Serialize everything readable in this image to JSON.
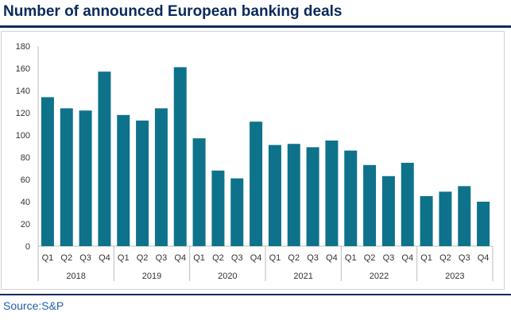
{
  "header": {
    "title": "Number of announced European banking deals"
  },
  "footer": {
    "source": "Source:S&P"
  },
  "chart_data": {
    "type": "bar",
    "title": "Number of announced European banking deals",
    "xlabel": "",
    "ylabel": "",
    "ylim": [
      0,
      180
    ],
    "yticks": [
      0,
      20,
      40,
      60,
      80,
      100,
      120,
      140,
      160,
      180
    ],
    "grid": false,
    "legend": "none",
    "color": "#0e728b",
    "years": [
      "2018",
      "2019",
      "2020",
      "2021",
      "2022",
      "2023"
    ],
    "quarters": [
      "Q1",
      "Q2",
      "Q3",
      "Q4"
    ],
    "categories": [
      "Q1",
      "Q2",
      "Q3",
      "Q4",
      "Q1",
      "Q2",
      "Q3",
      "Q4",
      "Q1",
      "Q2",
      "Q3",
      "Q4",
      "Q1",
      "Q2",
      "Q3",
      "Q4",
      "Q1",
      "Q2",
      "Q3",
      "Q4",
      "Q1",
      "Q2",
      "Q3",
      "Q4"
    ],
    "values": [
      134,
      124,
      122,
      157,
      118,
      113,
      124,
      161,
      97,
      68,
      61,
      112,
      91,
      92,
      89,
      95,
      86,
      73,
      63,
      75,
      45,
      49,
      54,
      40
    ]
  }
}
